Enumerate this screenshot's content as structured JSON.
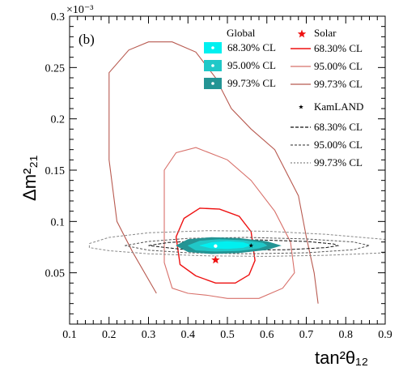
{
  "chart_data": {
    "type": "contour",
    "panel_label": "(b)",
    "xlabel": "tan²θ₁₂",
    "ylabel": "Δm²₂₁",
    "y_multiplier": "×10⁻³",
    "xlim": [
      0.1,
      0.9
    ],
    "ylim": [
      0.0,
      0.3
    ],
    "x_ticks": [
      0.1,
      0.2,
      0.3,
      0.4,
      0.5,
      0.6,
      0.7,
      0.8,
      0.9
    ],
    "x_tick_labels": [
      "0.1",
      "0.2",
      "0.3",
      "0.4",
      "0.5",
      "0.6",
      "0.7",
      "0.8",
      "0.9"
    ],
    "y_ticks": [
      0.05,
      0.1,
      0.15,
      0.2,
      0.25,
      0.3
    ],
    "y_tick_labels": [
      "0.05",
      "0.1",
      "0.15",
      "0.2",
      "0.25",
      "0.3"
    ],
    "grid": false,
    "legend_position": "top-right",
    "legend_groups": [
      {
        "title": "Global",
        "entries": [
          {
            "label": "68.30% CL",
            "color": "#00f0f0"
          },
          {
            "label": "95.00% CL",
            "color": "#20c8c8"
          },
          {
            "label": "99.73% CL",
            "color": "#249494"
          }
        ]
      },
      {
        "title": "Solar",
        "marker_color": "#ee1111",
        "entries": [
          {
            "label": "68.30% CL",
            "color": "#ee1111"
          },
          {
            "label": "95.00% CL",
            "color": "#d8706a"
          },
          {
            "label": "99.73% CL",
            "color": "#b85a50"
          }
        ]
      },
      {
        "title": "KamLAND",
        "marker_color": "#000000",
        "entries": [
          {
            "label": "68.30% CL",
            "color": "#111111"
          },
          {
            "label": "95.00% CL",
            "color": "#555555"
          },
          {
            "label": "99.73% CL",
            "color": "#888888"
          }
        ]
      }
    ],
    "best_fit": {
      "solar": {
        "x": 0.47,
        "y": 0.0625
      },
      "global": {
        "x": 0.47,
        "y": 0.076
      },
      "kamland": {
        "x": 0.56,
        "y": 0.0765
      }
    },
    "series": [
      {
        "name": "Solar 99.73% CL",
        "kind": "line",
        "color": "#b85a50",
        "width": 1.1,
        "points": [
          [
            0.32,
            0.03
          ],
          [
            0.26,
            0.07
          ],
          [
            0.22,
            0.1
          ],
          [
            0.2,
            0.16
          ],
          [
            0.2,
            0.245
          ],
          [
            0.25,
            0.267
          ],
          [
            0.3,
            0.275
          ],
          [
            0.36,
            0.275
          ],
          [
            0.42,
            0.265
          ],
          [
            0.47,
            0.24
          ],
          [
            0.51,
            0.21
          ],
          [
            0.56,
            0.19
          ],
          [
            0.62,
            0.17
          ],
          [
            0.68,
            0.125
          ],
          [
            0.7,
            0.085
          ],
          [
            0.72,
            0.05
          ],
          [
            0.73,
            0.02
          ]
        ]
      },
      {
        "name": "Solar 95.00% CL",
        "kind": "line",
        "color": "#d8706a",
        "width": 1.1,
        "points": [
          [
            0.4,
            0.03
          ],
          [
            0.36,
            0.035
          ],
          [
            0.34,
            0.06
          ],
          [
            0.34,
            0.1
          ],
          [
            0.34,
            0.15
          ],
          [
            0.37,
            0.167
          ],
          [
            0.42,
            0.172
          ],
          [
            0.5,
            0.16
          ],
          [
            0.56,
            0.14
          ],
          [
            0.62,
            0.11
          ],
          [
            0.66,
            0.08
          ],
          [
            0.67,
            0.05
          ],
          [
            0.64,
            0.035
          ],
          [
            0.58,
            0.025
          ],
          [
            0.5,
            0.025
          ],
          [
            0.45,
            0.028
          ],
          [
            0.4,
            0.03
          ]
        ]
      },
      {
        "name": "Solar 68.30% CL",
        "kind": "line",
        "color": "#ee1111",
        "width": 1.4,
        "points": [
          [
            0.42,
            0.047
          ],
          [
            0.38,
            0.058
          ],
          [
            0.37,
            0.085
          ],
          [
            0.39,
            0.103
          ],
          [
            0.43,
            0.113
          ],
          [
            0.48,
            0.112
          ],
          [
            0.53,
            0.105
          ],
          [
            0.56,
            0.09
          ],
          [
            0.57,
            0.062
          ],
          [
            0.555,
            0.048
          ],
          [
            0.52,
            0.04
          ],
          [
            0.47,
            0.04
          ],
          [
            0.42,
            0.047
          ]
        ]
      },
      {
        "name": "KamLAND 99.73% CL",
        "kind": "line",
        "color": "#888888",
        "width": 1.0,
        "dash": "3,2",
        "points": [
          [
            0.15,
            0.0785
          ],
          [
            0.2,
            0.0845
          ],
          [
            0.3,
            0.089
          ],
          [
            0.45,
            0.091
          ],
          [
            0.6,
            0.0905
          ],
          [
            0.75,
            0.0875
          ],
          [
            0.9,
            0.0825
          ],
          [
            0.9,
            0.0695
          ],
          [
            0.75,
            0.067
          ],
          [
            0.6,
            0.066
          ],
          [
            0.45,
            0.0665
          ],
          [
            0.3,
            0.0685
          ],
          [
            0.2,
            0.0715
          ],
          [
            0.15,
            0.0745
          ],
          [
            0.15,
            0.0785
          ]
        ]
      },
      {
        "name": "KamLAND 95.00% CL",
        "kind": "line",
        "color": "#555555",
        "width": 1.0,
        "dash": "3,2",
        "points": [
          [
            0.24,
            0.0765
          ],
          [
            0.3,
            0.0805
          ],
          [
            0.4,
            0.0835
          ],
          [
            0.55,
            0.0845
          ],
          [
            0.7,
            0.083
          ],
          [
            0.82,
            0.08
          ],
          [
            0.86,
            0.0765
          ],
          [
            0.82,
            0.0725
          ],
          [
            0.7,
            0.0695
          ],
          [
            0.55,
            0.0685
          ],
          [
            0.4,
            0.0695
          ],
          [
            0.3,
            0.072
          ],
          [
            0.24,
            0.0765
          ]
        ]
      },
      {
        "name": "KamLAND 68.30% CL",
        "kind": "line",
        "color": "#111111",
        "width": 1.0,
        "dash": "4,2",
        "points": [
          [
            0.3,
            0.0765
          ],
          [
            0.35,
            0.0795
          ],
          [
            0.45,
            0.0815
          ],
          [
            0.58,
            0.082
          ],
          [
            0.7,
            0.0805
          ],
          [
            0.77,
            0.078
          ],
          [
            0.78,
            0.0765
          ],
          [
            0.75,
            0.0745
          ],
          [
            0.65,
            0.0725
          ],
          [
            0.5,
            0.072
          ],
          [
            0.38,
            0.073
          ],
          [
            0.3,
            0.0765
          ]
        ]
      },
      {
        "name": "Global 99.73% CL",
        "kind": "fill",
        "color": "#249494",
        "points": [
          [
            0.37,
            0.0765
          ],
          [
            0.4,
            0.0825
          ],
          [
            0.46,
            0.0845
          ],
          [
            0.53,
            0.0835
          ],
          [
            0.6,
            0.0805
          ],
          [
            0.635,
            0.0765
          ],
          [
            0.6,
            0.0725
          ],
          [
            0.53,
            0.0695
          ],
          [
            0.46,
            0.0685
          ],
          [
            0.4,
            0.0705
          ],
          [
            0.37,
            0.0765
          ]
        ]
      },
      {
        "name": "Global 95.00% CL",
        "kind": "fill",
        "color": "#20c8c8",
        "points": [
          [
            0.4,
            0.0765
          ],
          [
            0.43,
            0.081
          ],
          [
            0.48,
            0.0825
          ],
          [
            0.54,
            0.0815
          ],
          [
            0.59,
            0.079
          ],
          [
            0.6,
            0.0765
          ],
          [
            0.58,
            0.074
          ],
          [
            0.53,
            0.0715
          ],
          [
            0.47,
            0.071
          ],
          [
            0.42,
            0.072
          ],
          [
            0.4,
            0.0765
          ]
        ]
      },
      {
        "name": "Global 68.30% CL",
        "kind": "fill",
        "color": "#00f0f0",
        "points": [
          [
            0.43,
            0.0765
          ],
          [
            0.46,
            0.0795
          ],
          [
            0.5,
            0.0805
          ],
          [
            0.54,
            0.0795
          ],
          [
            0.56,
            0.077
          ],
          [
            0.54,
            0.0745
          ],
          [
            0.5,
            0.0735
          ],
          [
            0.46,
            0.074
          ],
          [
            0.43,
            0.0765
          ]
        ]
      }
    ]
  }
}
